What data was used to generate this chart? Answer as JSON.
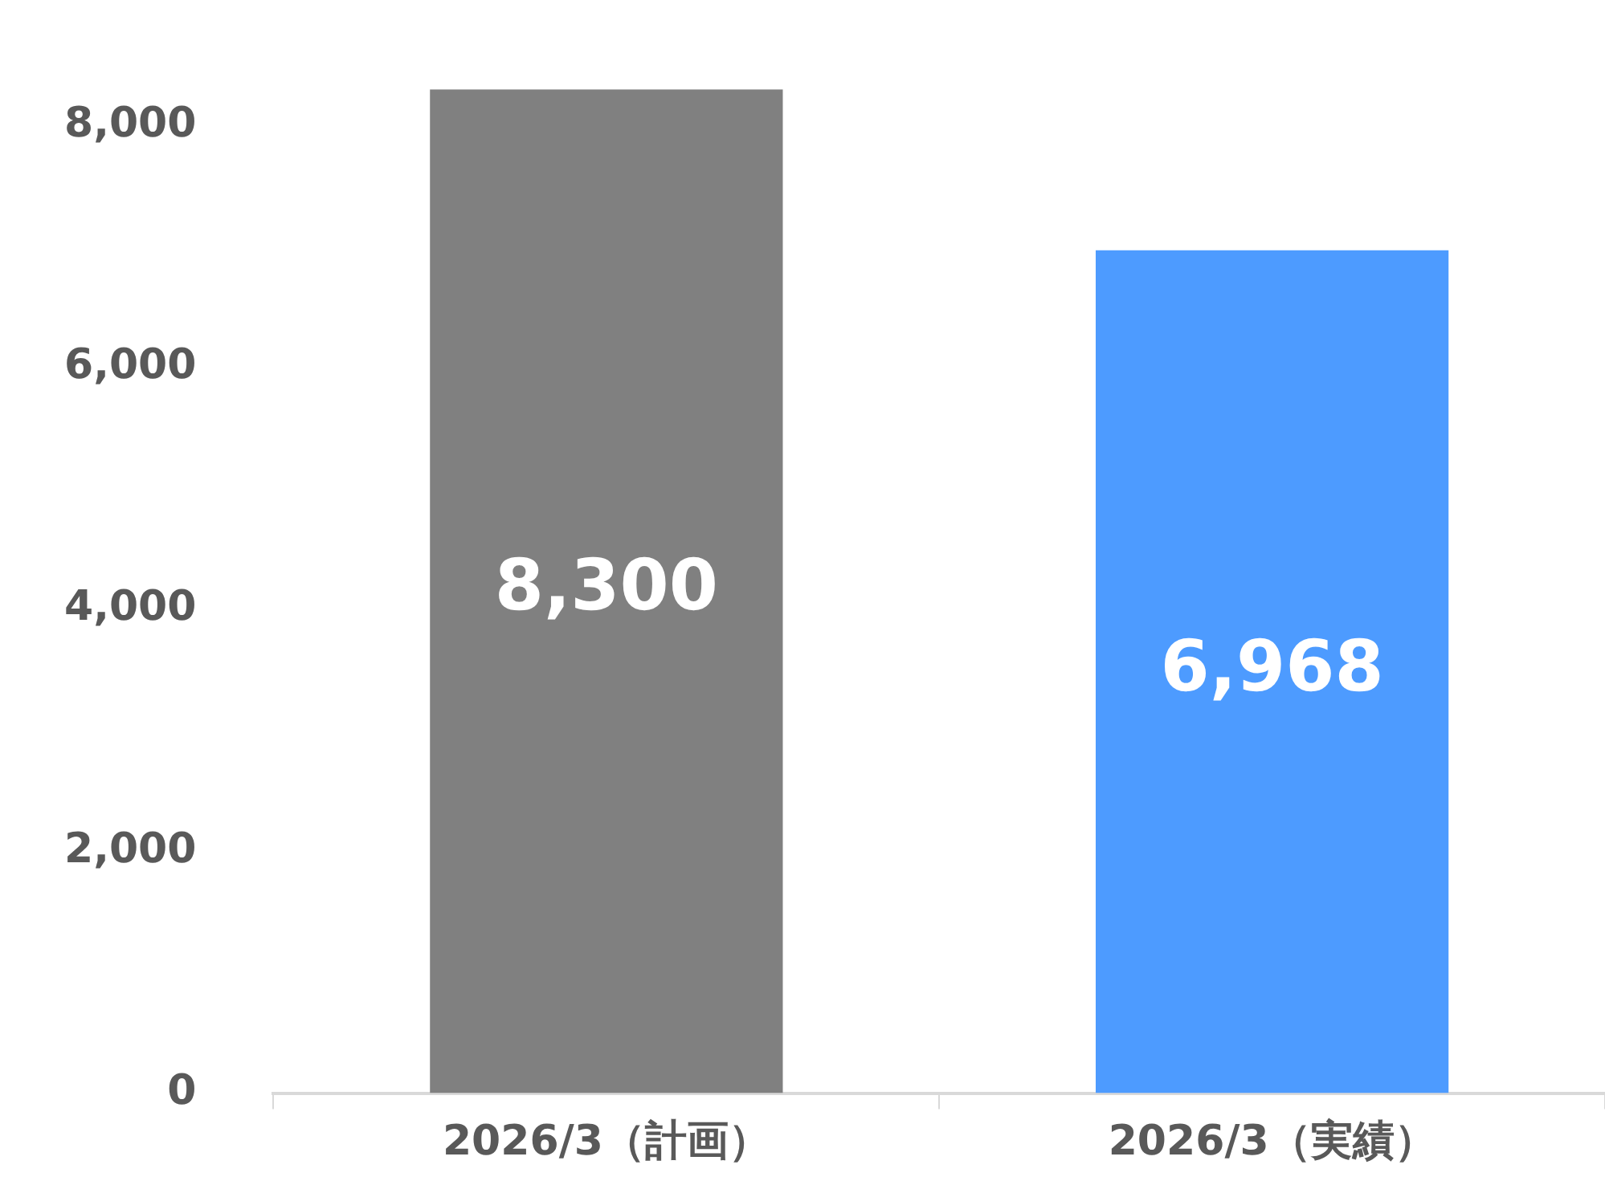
{
  "chart_data": {
    "type": "bar",
    "categories": [
      "2026/3（計画）",
      "2026/3（実績）"
    ],
    "values": [
      8300,
      6968
    ],
    "value_labels": [
      "8,300",
      "6,968"
    ],
    "colors": [
      "#808080",
      "#4d9bff"
    ],
    "ylim": [
      0,
      8300
    ],
    "yticks": [
      0,
      {
        "value": 2000,
        "label": "2,000"
      },
      {
        "value": 4000,
        "label": "4,000"
      },
      {
        "value": 6000,
        "label": "6,000"
      },
      {
        "value": 8000,
        "label": "8,000"
      }
    ]
  }
}
